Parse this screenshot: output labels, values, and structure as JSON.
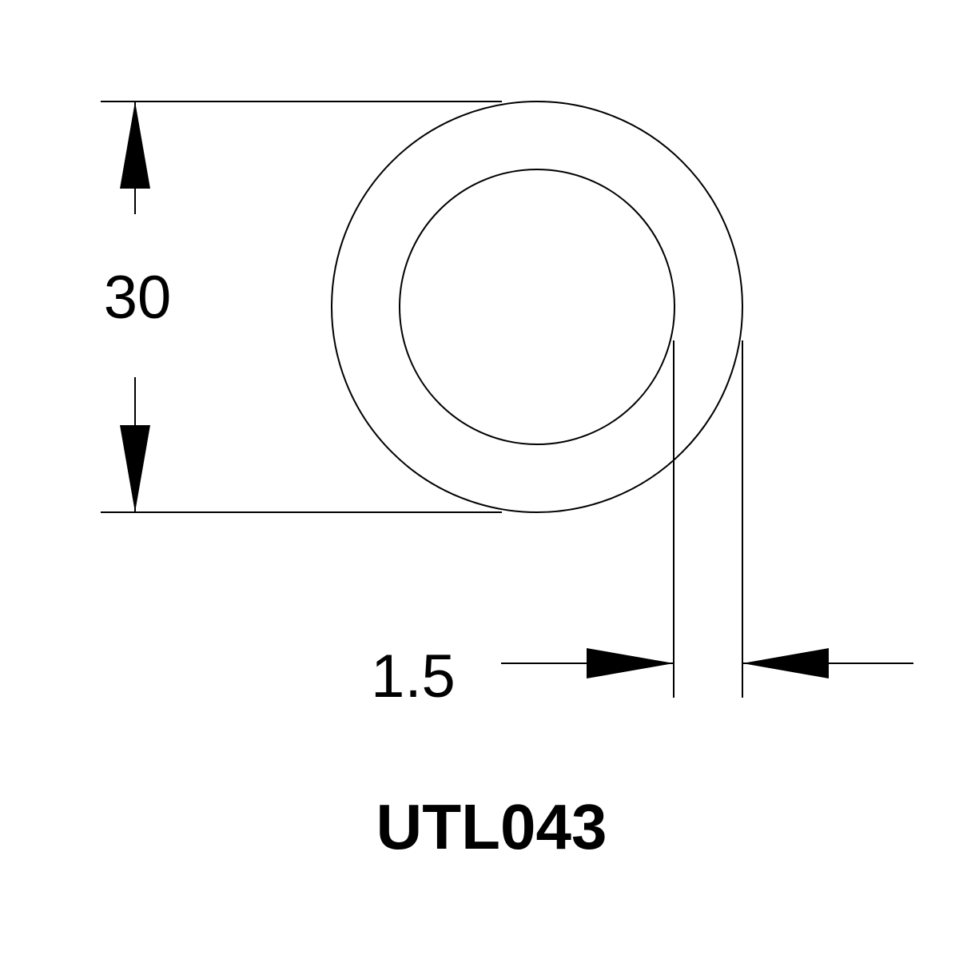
{
  "diagram": {
    "outer_diameter_label": "30",
    "wall_thickness_label": "1.5",
    "part_code": "UTL043",
    "line_color": "#000000",
    "background_color": "#ffffff"
  }
}
